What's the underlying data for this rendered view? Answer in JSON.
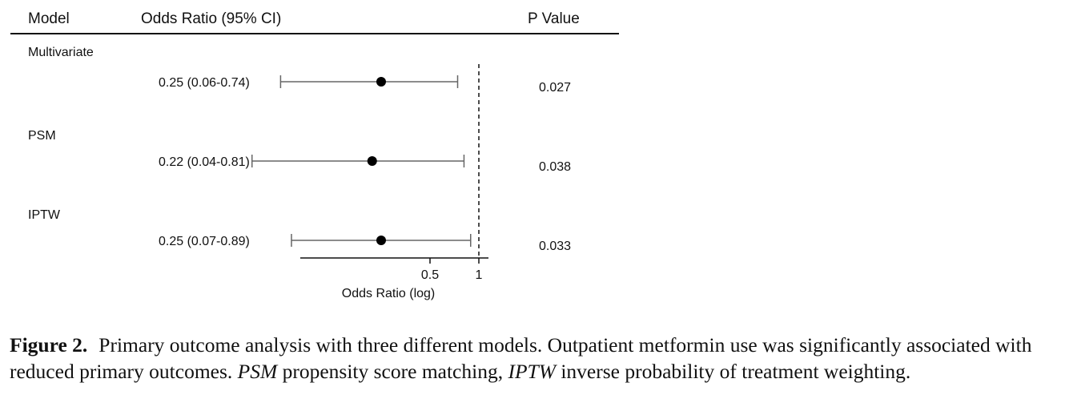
{
  "chart_data": {
    "type": "forest",
    "columns": {
      "model": "Model",
      "odds_ratio": "Odds Ratio (95% CI)",
      "p_value": "P Value"
    },
    "rows": [
      {
        "model": "Multivariate",
        "estimate_text": "0.25 (0.06-0.74)",
        "or": 0.25,
        "ci_low": 0.06,
        "ci_high": 0.74,
        "p_value": "0.027"
      },
      {
        "model": "PSM",
        "estimate_text": "0.22 (0.04-0.81)",
        "or": 0.22,
        "ci_low": 0.04,
        "ci_high": 0.81,
        "p_value": "0.038"
      },
      {
        "model": "IPTW",
        "estimate_text": "0.25 (0.07-0.89)",
        "or": 0.25,
        "ci_low": 0.07,
        "ci_high": 0.89,
        "p_value": "0.033"
      }
    ],
    "xaxis": {
      "label": "Odds Ratio (log)",
      "scale": "log",
      "ticks": [
        0.5,
        1
      ],
      "tick_labels": [
        "0.5",
        "1"
      ]
    },
    "reference_line": 1
  },
  "caption": {
    "label": "Figure 2.",
    "text": "Primary outcome analysis with three different models. Outpatient metformin use was significantly associated with reduced primary outcomes. ",
    "abbr1": "PSM",
    "abbr1_text": " propensity score matching, ",
    "abbr2": "IPTW",
    "abbr2_text": " inverse probability of treatment weighting."
  }
}
